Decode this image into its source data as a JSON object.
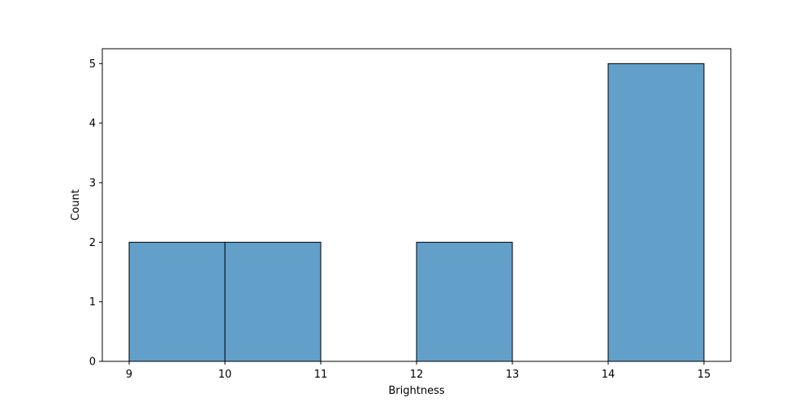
{
  "chart_data": {
    "type": "bar",
    "title": "",
    "xlabel": "Brightness",
    "ylabel": "Count",
    "bins": [
      {
        "start": 9,
        "end": 10,
        "count": 2
      },
      {
        "start": 10,
        "end": 11,
        "count": 2
      },
      {
        "start": 11,
        "end": 12,
        "count": 0
      },
      {
        "start": 12,
        "end": 13,
        "count": 2
      },
      {
        "start": 13,
        "end": 14,
        "count": 0
      },
      {
        "start": 14,
        "end": 15,
        "count": 5
      }
    ],
    "xlim": [
      8.72,
      15.28
    ],
    "ylim": [
      0,
      5.25
    ],
    "xticks": [
      9,
      10,
      11,
      12,
      13,
      14,
      15
    ],
    "yticks": [
      0,
      1,
      2,
      3,
      4,
      5
    ],
    "grid": false,
    "bar_color": "#1f77b4",
    "bar_opacity": 0.7,
    "edge_color": "#000000"
  }
}
